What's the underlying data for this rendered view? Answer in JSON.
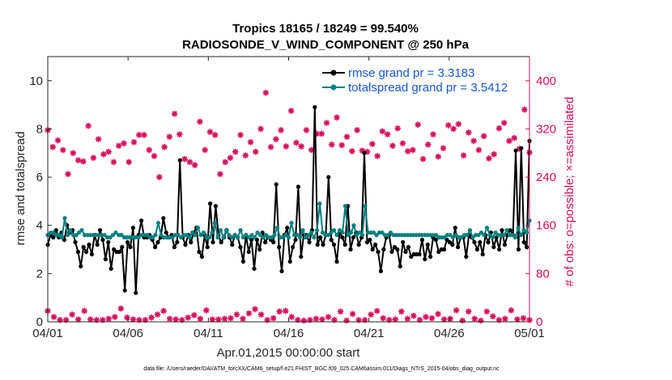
{
  "colors": {
    "rmse": "#000000",
    "spread": "#008080",
    "obs": "#d6105c",
    "legend_text": "#1558d6",
    "axis": "#262626"
  },
  "chart_data": {
    "type": "line",
    "title_line1": "Tropics 18165 / 18249 = 99.540%",
    "title_line2": "RADIOSONDE_V_WIND_COMPONENT @ 250 hPa",
    "xlabel": "Apr.01,2015 00:00:00 start",
    "ylabel_left": "rmse and totalspread",
    "ylabel_right": "# of obs: o=possible; ×=assimilated",
    "footer": "data file: /Users/raeder/DAI/ATM_forcXX/CAM6_setup/f.e21.FHIST_BGC.f09_025.CAM6assim.011/Diags_NTrS_2015-04/obs_diag_output.nc",
    "x_start_day": 1,
    "x_end_day": 31,
    "xlim": [
      1,
      31
    ],
    "ylim_left": [
      0,
      11
    ],
    "ylim_right": [
      0,
      440
    ],
    "xticks": [
      1,
      6,
      11,
      16,
      21,
      26,
      31
    ],
    "xtick_labels": [
      "04/01",
      "04/06",
      "04/11",
      "04/16",
      "04/21",
      "04/26",
      "05/01"
    ],
    "yticks_left": [
      0,
      2,
      4,
      6,
      8,
      10
    ],
    "yticks_left_labels": [
      "0",
      "2",
      "4",
      "6",
      "8",
      "10"
    ],
    "yticks_right": [
      0,
      80,
      160,
      240,
      320,
      400
    ],
    "yticks_right_labels": [
      "0",
      "80",
      "160",
      "240",
      "320",
      "400"
    ],
    "series": [
      {
        "name": "rmse grand pr = 3.3183",
        "axis": "left",
        "values": [
          3.2,
          3.6,
          3.5,
          3.8,
          3.5,
          3.7,
          3.4,
          4.0,
          3.7,
          3.8,
          3.3,
          2.9,
          2.3,
          3.1,
          2.9,
          3.2,
          2.8,
          3.6,
          3.2,
          3.8,
          3.4,
          2.6,
          3.3,
          2.2,
          3.0,
          2.9,
          2.9,
          3.1,
          1.3,
          3.3,
          3.1,
          3.9,
          1.2,
          3.6,
          4.2,
          3.5,
          3.5,
          3.6,
          3.4,
          3.1,
          3.3,
          3.5,
          4.3,
          3.7,
          3.5,
          3.6,
          3.1,
          3.3,
          6.7,
          3.5,
          3.2,
          3.6,
          3.3,
          3.7,
          3.9,
          2.9,
          2.7,
          3.6,
          3.1,
          4.9,
          3.3,
          4.8,
          3.6,
          3.3,
          3.5,
          3.8,
          3.5,
          3.2,
          3.6,
          3.5,
          3.1,
          2.5,
          3.6,
          2.9,
          3.4,
          2.2,
          3.4,
          3.0,
          3.7,
          3.3,
          3.5,
          3.4,
          3.3,
          5.7,
          3.1,
          2.1,
          3.6,
          3.9,
          2.5,
          3.1,
          3.4,
          5.6,
          2.7,
          3.6,
          3.6,
          3.3,
          3.8,
          8.9,
          3.2,
          3.5,
          3.2,
          3.6,
          6.0,
          3.4,
          3.2,
          2.5,
          3.7,
          3.5,
          3.2,
          4.8,
          3.0,
          3.5,
          3.7,
          3.2,
          3.5,
          7.0,
          3.3,
          3.4,
          3.0,
          3.2,
          2.9,
          2.1,
          3.0,
          3.5,
          3.6,
          2.9,
          3.1,
          3.0,
          2.3,
          3.3,
          2.9,
          3.1,
          2.7,
          2.8,
          2.8,
          2.8,
          3.4,
          2.6,
          3.2,
          2.7,
          3.5,
          3.4,
          2.9,
          3.0,
          3.0,
          3.4,
          3.3,
          3.2,
          3.9,
          3.1,
          3.5,
          3.5,
          2.7,
          3.6,
          3.5,
          3.3,
          3.0,
          3.3,
          2.8,
          3.6,
          3.3,
          3.7,
          3.1,
          3.5,
          3.0,
          3.8,
          3.2,
          3.6,
          3.8,
          3.6,
          7.1,
          3.0,
          7.2,
          3.3,
          3.1,
          7.5
        ]
      },
      {
        "name": "totalspread grand pr = 3.5412",
        "axis": "left",
        "values": [
          3.6,
          3.7,
          3.7,
          3.6,
          3.6,
          3.5,
          4.3,
          3.6,
          3.8,
          3.6,
          3.6,
          3.7,
          3.8,
          3.6,
          3.6,
          3.6,
          3.6,
          3.6,
          3.6,
          3.6,
          3.6,
          3.5,
          3.5,
          3.6,
          3.7,
          3.6,
          3.6,
          3.5,
          3.5,
          3.5,
          3.5,
          3.5,
          3.5,
          3.6,
          3.6,
          3.6,
          3.5,
          3.5,
          3.6,
          4.1,
          3.6,
          3.5,
          3.5,
          3.5,
          3.5,
          3.6,
          3.6,
          3.5,
          3.6,
          3.6,
          3.5,
          3.7,
          3.6,
          3.9,
          3.6,
          3.7,
          3.5,
          3.5,
          3.7,
          4.1,
          3.5,
          3.8,
          3.5,
          3.8,
          3.6,
          3.5,
          3.6,
          3.5,
          3.8,
          3.5,
          3.6,
          3.5,
          3.6,
          3.5,
          3.7,
          3.6,
          3.5,
          3.6,
          3.5,
          3.5,
          3.6,
          3.9,
          3.5,
          3.5,
          3.6,
          3.5,
          4.1,
          3.6,
          3.6,
          3.5,
          3.8,
          3.5,
          3.6,
          3.7,
          3.5,
          3.8,
          4.9,
          3.7,
          3.6,
          3.6,
          3.7,
          3.8,
          3.6,
          3.8,
          3.7,
          4.8,
          3.6,
          3.7,
          4.0,
          3.6,
          3.7,
          3.6,
          4.8,
          3.7,
          3.7,
          3.7,
          3.6,
          3.7,
          3.7,
          3.6,
          3.6,
          3.7,
          3.6,
          3.6,
          3.6,
          3.6,
          3.6,
          3.6,
          3.6,
          3.6,
          3.6,
          3.6,
          3.6,
          3.6,
          3.6,
          3.6,
          3.6,
          3.6,
          3.5,
          3.5,
          3.5,
          3.6,
          3.6,
          3.5,
          3.6,
          3.5,
          3.5,
          3.6,
          3.6,
          3.8,
          3.5,
          3.6,
          3.6,
          3.7,
          3.6,
          3.9,
          3.6,
          3.5,
          3.7,
          3.6,
          3.6,
          3.6,
          3.8,
          3.6,
          3.6,
          3.5,
          3.9,
          3.6,
          3.8,
          3.7,
          4.2
        ]
      }
    ],
    "obs_possible_values": [
      16,
      38,
      31,
      37,
      32,
      38,
      19,
      38,
      31,
      33,
      17,
      33,
      36,
      35,
      41,
      15,
      33,
      36,
      34,
      39,
      15,
      33,
      42,
      39,
      16,
      41,
      26,
      13,
      37,
      31,
      32,
      17,
      35,
      34,
      16,
      38,
      30,
      33,
      35,
      15,
      32,
      38,
      30,
      17,
      35,
      33,
      34,
      31,
      30,
      34,
      35
    ],
    "obs_possible_days": [
      1.0,
      1.1,
      1.5,
      1.8,
      2.3,
      2.6,
      2.9,
      3.2,
      3.6,
      4.1,
      4.3,
      4.6,
      5.1,
      5.4,
      6.3,
      6.5,
      6.7,
      7.1,
      7.4,
      7.8,
      8.0,
      8.3,
      8.5,
      9.0,
      9.4,
      9.7,
      10.0,
      10.4,
      10.8,
      11.2,
      11.6,
      11.8,
      12.1,
      12.6,
      13.0,
      13.3,
      13.6,
      14.0,
      14.4,
      14.7,
      15.0,
      15.3,
      15.6,
      16.0,
      16.5,
      16.8,
      17.1,
      17.4,
      17.8,
      18.1,
      18.4
    ],
    "obs_assimilated_values": [
      318,
      290,
      301,
      285,
      245,
      280,
      268,
      266,
      325,
      272,
      303,
      278,
      282,
      265,
      292,
      296,
      265,
      298,
      310,
      310,
      285,
      275,
      240,
      290,
      307,
      345,
      311,
      270,
      265,
      260,
      332,
      285,
      315,
      310,
      245,
      265,
      272,
      282,
      310,
      276,
      298,
      282,
      320,
      380,
      290,
      303,
      318,
      291,
      350,
      297,
      291,
      318,
      285,
      312,
      312,
      330,
      294,
      339,
      293,
      307,
      283,
      318,
      284,
      282,
      295,
      275,
      316,
      311,
      292,
      321,
      296,
      283,
      285,
      327,
      270,
      294,
      311,
      274,
      288,
      326,
      320,
      328,
      276,
      314,
      300,
      285,
      308,
      271,
      278,
      321,
      330,
      300,
      305,
      287,
      352,
      281
    ],
    "obs_low_values": [
      18,
      8,
      3,
      3,
      12,
      4,
      18,
      4,
      3,
      3,
      5,
      8,
      22,
      7,
      4,
      3,
      3,
      7,
      12,
      18,
      5,
      4,
      3,
      7,
      11,
      5,
      19,
      4,
      4,
      5,
      6,
      12,
      5,
      14,
      21,
      12,
      3,
      6,
      17,
      18,
      8,
      3,
      2,
      3,
      5,
      4,
      8,
      3,
      17,
      2,
      13,
      3,
      3,
      12,
      18,
      6,
      3,
      4,
      17,
      5,
      10,
      3,
      8,
      6,
      13,
      4,
      5,
      19,
      2,
      17,
      5,
      2,
      17,
      9,
      3,
      5,
      19,
      4,
      6,
      3
    ]
  },
  "legend": {
    "rmse_label": "rmse grand pr = 3.3183",
    "spread_label": "totalspread grand pr = 3.5412"
  }
}
